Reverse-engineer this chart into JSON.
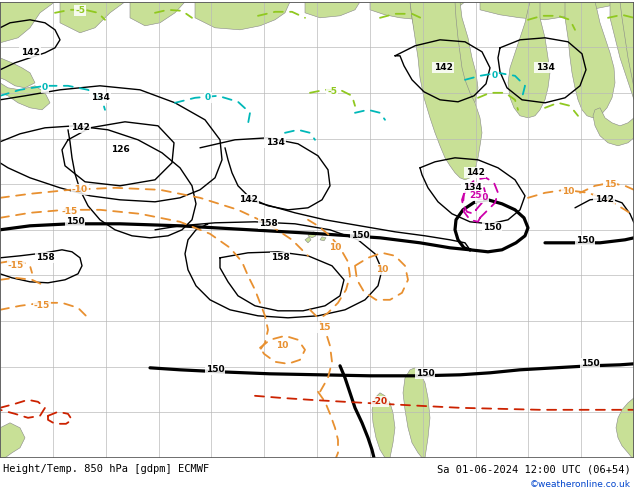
{
  "title_left": "Height/Temp. 850 hPa [gdpm] ECMWF",
  "title_right": "Sa 01-06-2024 12:00 UTC (06+54)",
  "copyright": "©weatheronline.co.uk",
  "sea_color": "#d0d0d0",
  "land_color": "#c8e096",
  "land_color_dark": "#b0c880",
  "grid_color": "#b8b8b8",
  "border_color": "#888888",
  "bottom_bar_color": "#c8c8c8",
  "fig_width": 6.34,
  "fig_height": 4.9,
  "dpi": 100,
  "black": "#000000",
  "orange": "#e89030",
  "red": "#cc2200",
  "magenta": "#cc00aa",
  "cyan": "#00b8b8",
  "lgreen": "#90c820",
  "blue": "#0044cc",
  "label_fontsize": 6.5,
  "title_fontsize": 7.5,
  "copyright_fontsize": 6.5
}
